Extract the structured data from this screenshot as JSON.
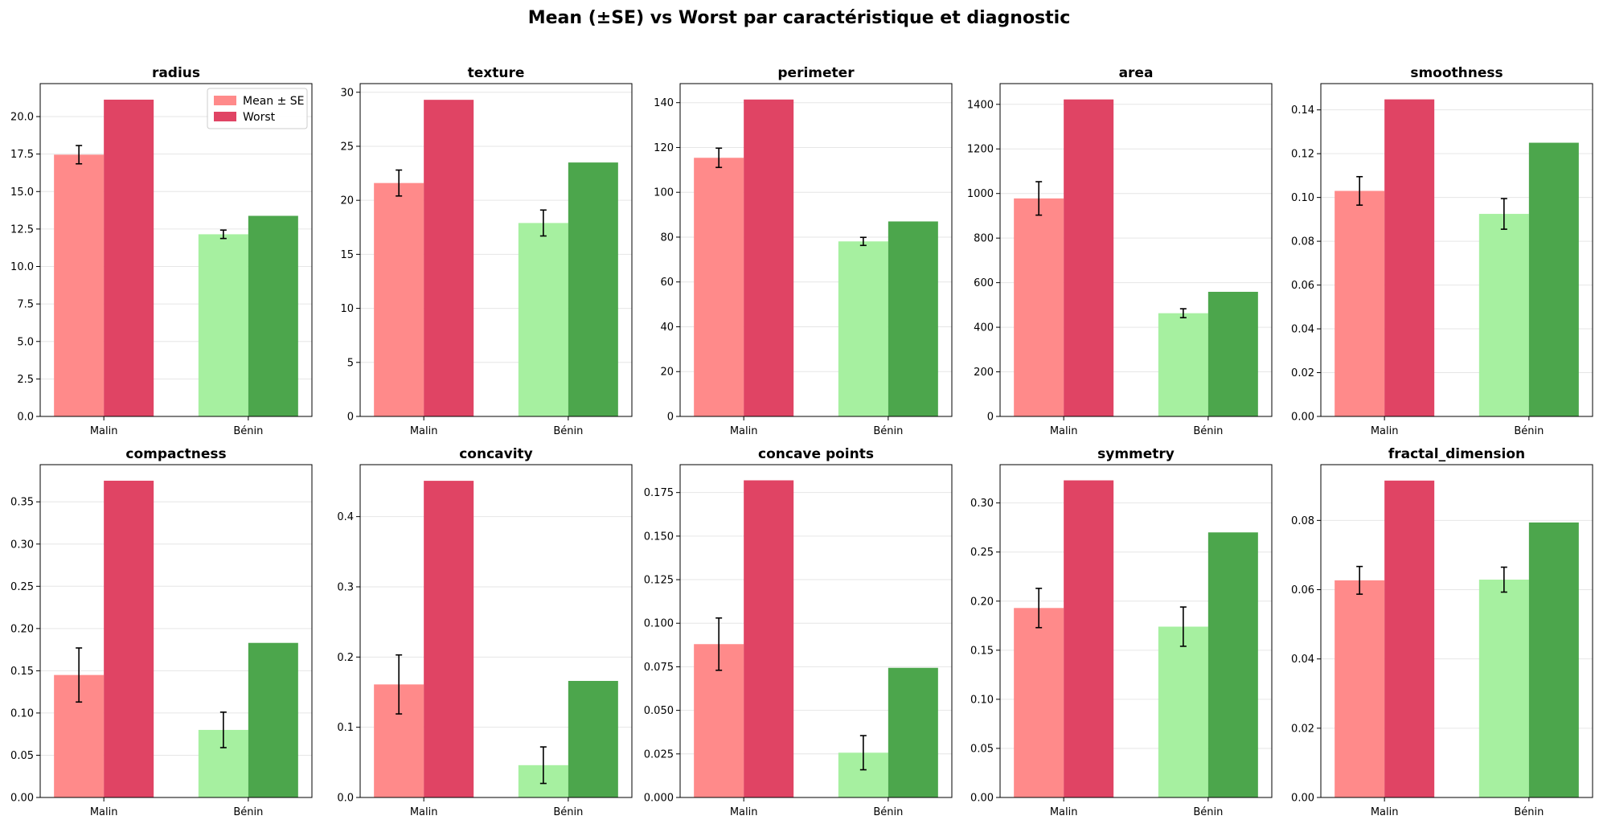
{
  "figure": {
    "title": "Mean (±SE) vs Worst par caractéristique et diagnostic"
  },
  "colors": {
    "malin_mean": "#ff8a8a",
    "malin_worst": "#e04464",
    "benin_mean": "#a6f0a0",
    "benin_worst": "#4ca64c",
    "grid": "#e6e6e6",
    "error_bar": "#000000"
  },
  "legend": {
    "entries": [
      "Mean ± SE",
      "Worst"
    ],
    "placement": "upper right of first panel"
  },
  "chart_data": [
    {
      "type": "bar",
      "title": "radius",
      "categories": [
        "Malin",
        "Bénin"
      ],
      "series": [
        {
          "name": "Mean ± SE",
          "values": [
            17.46,
            12.15
          ],
          "errors": [
            0.61,
            0.28
          ]
        },
        {
          "name": "Worst",
          "values": [
            21.13,
            13.38
          ]
        }
      ],
      "ylim": [
        0,
        22.2
      ],
      "yticks": [
        0.0,
        2.5,
        5.0,
        7.5,
        10.0,
        12.5,
        15.0,
        17.5,
        20.0
      ],
      "ytick_labels": [
        "0.0",
        "2.5",
        "5.0",
        "7.5",
        "10.0",
        "12.5",
        "15.0",
        "17.5",
        "20.0"
      ],
      "grid": true
    },
    {
      "type": "bar",
      "title": "texture",
      "categories": [
        "Malin",
        "Bénin"
      ],
      "series": [
        {
          "name": "Mean ± SE",
          "values": [
            21.6,
            17.9
          ],
          "errors": [
            1.2,
            1.2
          ]
        },
        {
          "name": "Worst",
          "values": [
            29.3,
            23.5
          ]
        }
      ],
      "ylim": [
        0,
        30.8
      ],
      "yticks": [
        0,
        5,
        10,
        15,
        20,
        25,
        30
      ],
      "ytick_labels": [
        "0",
        "5",
        "10",
        "15",
        "20",
        "25",
        "30"
      ],
      "grid": true
    },
    {
      "type": "bar",
      "title": "perimeter",
      "categories": [
        "Malin",
        "Bénin"
      ],
      "series": [
        {
          "name": "Mean ± SE",
          "values": [
            115.4,
            78.1
          ],
          "errors": [
            4.3,
            1.8
          ]
        },
        {
          "name": "Worst",
          "values": [
            141.4,
            87.0
          ]
        }
      ],
      "ylim": [
        0,
        148.5
      ],
      "yticks": [
        0,
        20,
        40,
        60,
        80,
        100,
        120,
        140
      ],
      "ytick_labels": [
        "0",
        "20",
        "40",
        "60",
        "80",
        "100",
        "120",
        "140"
      ],
      "grid": true
    },
    {
      "type": "bar",
      "title": "area",
      "categories": [
        "Malin",
        "Bénin"
      ],
      "series": [
        {
          "name": "Mean ± SE",
          "values": [
            978,
            463
          ],
          "errors": [
            75,
            20
          ]
        },
        {
          "name": "Worst",
          "values": [
            1422,
            559
          ]
        }
      ],
      "ylim": [
        0,
        1493
      ],
      "yticks": [
        0,
        200,
        400,
        600,
        800,
        1000,
        1200,
        1400
      ],
      "ytick_labels": [
        "0",
        "200",
        "400",
        "600",
        "800",
        "1000",
        "1200",
        "1400"
      ],
      "grid": true
    },
    {
      "type": "bar",
      "title": "smoothness",
      "categories": [
        "Malin",
        "Bénin"
      ],
      "series": [
        {
          "name": "Mean ± SE",
          "values": [
            0.103,
            0.0925
          ],
          "errors": [
            0.0065,
            0.007
          ]
        },
        {
          "name": "Worst",
          "values": [
            0.1448,
            0.125
          ]
        }
      ],
      "ylim": [
        0,
        0.152
      ],
      "yticks": [
        0.0,
        0.02,
        0.04,
        0.06,
        0.08,
        0.1,
        0.12,
        0.14
      ],
      "ytick_labels": [
        "0.00",
        "0.02",
        "0.04",
        "0.06",
        "0.08",
        "0.10",
        "0.12",
        "0.14"
      ],
      "grid": true
    },
    {
      "type": "bar",
      "title": "compactness",
      "categories": [
        "Malin",
        "Bénin"
      ],
      "series": [
        {
          "name": "Mean ± SE",
          "values": [
            0.145,
            0.08
          ],
          "errors": [
            0.032,
            0.021
          ]
        },
        {
          "name": "Worst",
          "values": [
            0.375,
            0.183
          ]
        }
      ],
      "ylim": [
        0,
        0.394
      ],
      "yticks": [
        0.0,
        0.05,
        0.1,
        0.15,
        0.2,
        0.25,
        0.3,
        0.35
      ],
      "ytick_labels": [
        "0.00",
        "0.05",
        "0.10",
        "0.15",
        "0.20",
        "0.25",
        "0.30",
        "0.35"
      ],
      "grid": true
    },
    {
      "type": "bar",
      "title": "concavity",
      "categories": [
        "Malin",
        "Bénin"
      ],
      "series": [
        {
          "name": "Mean ± SE",
          "values": [
            0.161,
            0.046
          ],
          "errors": [
            0.042,
            0.026
          ]
        },
        {
          "name": "Worst",
          "values": [
            0.451,
            0.166
          ]
        }
      ],
      "ylim": [
        0,
        0.474
      ],
      "yticks": [
        0.0,
        0.1,
        0.2,
        0.3,
        0.4
      ],
      "ytick_labels": [
        "0.0",
        "0.1",
        "0.2",
        "0.3",
        "0.4"
      ],
      "grid": true
    },
    {
      "type": "bar",
      "title": "concave points",
      "categories": [
        "Malin",
        "Bénin"
      ],
      "series": [
        {
          "name": "Mean ± SE",
          "values": [
            0.088,
            0.0257
          ],
          "errors": [
            0.015,
            0.0098
          ]
        },
        {
          "name": "Worst",
          "values": [
            0.182,
            0.0744
          ]
        }
      ],
      "ylim": [
        0,
        0.191
      ],
      "yticks": [
        0.0,
        0.025,
        0.05,
        0.075,
        0.1,
        0.125,
        0.15,
        0.175
      ],
      "ytick_labels": [
        "0.000",
        "0.025",
        "0.050",
        "0.075",
        "0.100",
        "0.125",
        "0.150",
        "0.175"
      ],
      "grid": true
    },
    {
      "type": "bar",
      "title": "symmetry",
      "categories": [
        "Malin",
        "Bénin"
      ],
      "series": [
        {
          "name": "Mean ± SE",
          "values": [
            0.193,
            0.174
          ],
          "errors": [
            0.02,
            0.02
          ]
        },
        {
          "name": "Worst",
          "values": [
            0.323,
            0.27
          ]
        }
      ],
      "ylim": [
        0,
        0.339
      ],
      "yticks": [
        0.0,
        0.05,
        0.1,
        0.15,
        0.2,
        0.25,
        0.3
      ],
      "ytick_labels": [
        "0.00",
        "0.05",
        "0.10",
        "0.15",
        "0.20",
        "0.25",
        "0.30"
      ],
      "grid": true
    },
    {
      "type": "bar",
      "title": "fractal_dimension",
      "categories": [
        "Malin",
        "Bénin"
      ],
      "series": [
        {
          "name": "Mean ± SE",
          "values": [
            0.0627,
            0.0629
          ],
          "errors": [
            0.004,
            0.0036
          ]
        },
        {
          "name": "Worst",
          "values": [
            0.0915,
            0.0794
          ]
        }
      ],
      "ylim": [
        0,
        0.0961
      ],
      "yticks": [
        0.0,
        0.02,
        0.04,
        0.06,
        0.08
      ],
      "ytick_labels": [
        "0.00",
        "0.02",
        "0.04",
        "0.06",
        "0.08"
      ],
      "grid": true
    }
  ]
}
